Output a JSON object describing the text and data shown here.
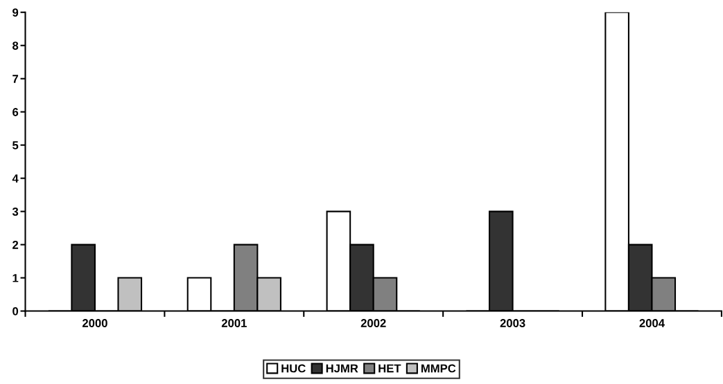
{
  "chart_data": {
    "type": "bar",
    "categories": [
      "2000",
      "2001",
      "2002",
      "2003",
      "2004"
    ],
    "series": [
      {
        "name": "HUC",
        "color": "#ffffff",
        "values": [
          0,
          1,
          3,
          0,
          9
        ]
      },
      {
        "name": "HJMR",
        "color": "#333333",
        "values": [
          2,
          0,
          2,
          3,
          2
        ]
      },
      {
        "name": "HET",
        "color": "#808080",
        "values": [
          0,
          2,
          1,
          0,
          1
        ]
      },
      {
        "name": "MMPC",
        "color": "#c0c0c0",
        "values": [
          1,
          1,
          0,
          0,
          0
        ]
      }
    ],
    "ylim": [
      0,
      9
    ],
    "yticks": [
      0,
      1,
      2,
      3,
      4,
      5,
      6,
      7,
      8,
      9
    ],
    "grid": false,
    "legend": "bottom"
  }
}
